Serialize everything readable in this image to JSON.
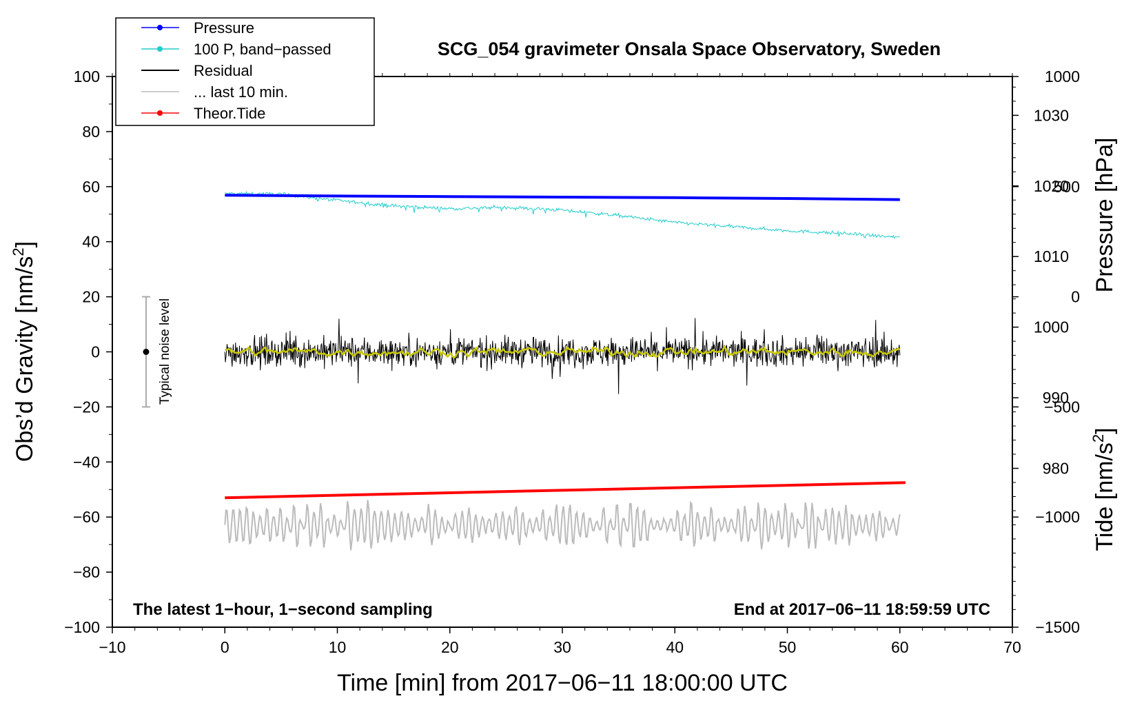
{
  "chart_data": {
    "type": "line",
    "title": "SCG_054 gravimeter Onsala Space Observatory, Sweden",
    "xlabel": "Time [min] from 2017−06−11 18:00:00 UTC",
    "xlim": [
      -10,
      70
    ],
    "x_ticks": [
      "−10",
      "0",
      "10",
      "20",
      "30",
      "40",
      "50",
      "60",
      "70"
    ],
    "left_axis": {
      "label": "Obs’d Gravity [nm/s",
      "label_sup": "2",
      "label_end": "]",
      "ylim": [
        -100,
        100
      ],
      "ticks": [
        "−100",
        "−80",
        "−60",
        "−40",
        "−20",
        "0",
        "20",
        "40",
        "60",
        "80",
        "100"
      ]
    },
    "right_pressure_axis": {
      "label": "Pressure [hPa]",
      "range_hpa": [
        957.5,
        1035.5
      ],
      "ticks": [
        "980",
        "990",
        "1000",
        "1010",
        "1020",
        "1030"
      ]
    },
    "right_tide_axis": {
      "label": "Tide [nm/s",
      "label_sup": "2",
      "label_end": "]",
      "range": [
        -1500,
        1000
      ],
      "ticks": [
        "−1500",
        "−1000",
        "−500",
        "0",
        "500",
        "1000"
      ]
    },
    "legend": {
      "position": "top-left",
      "entries": [
        {
          "label": "Pressure",
          "color": "#0000ff",
          "marker": true
        },
        {
          "label": "100 P, band−passed",
          "color": "#22cccc",
          "marker": true
        },
        {
          "label": "Residual",
          "color": "#000000",
          "marker": false
        },
        {
          "label": "... last 10 min.",
          "color": "#bbbbbb",
          "marker": false
        },
        {
          "label": "Theor.Tide",
          "color": "#ff0000",
          "marker": true
        }
      ]
    },
    "noise_bar": {
      "label": "Typical noise level",
      "x": -7,
      "center": 0,
      "low": -20,
      "high": 20
    },
    "footer_left": "The latest 1−hour, 1−second sampling",
    "footer_right": "End at 2017−06−11 18:59:59 UTC",
    "series": [
      {
        "name": "Pressure",
        "axis": "left_gravity_units",
        "color": "#0000ff",
        "x": [
          0,
          10,
          20,
          30,
          40,
          50,
          60
        ],
        "y": [
          56.9,
          56.6,
          56.4,
          56.2,
          56.0,
          55.7,
          55.3
        ]
      },
      {
        "name": "100 P, band−passed",
        "axis": "left",
        "color": "#22cccc",
        "x": [
          0,
          5,
          10,
          15,
          20,
          25,
          30,
          35,
          40,
          45,
          50,
          55,
          60
        ],
        "y": [
          57.5,
          57.3,
          55.0,
          53.0,
          52.0,
          52.5,
          51.5,
          49.5,
          47.0,
          45.5,
          44.0,
          43.0,
          41.5
        ]
      },
      {
        "name": "Residual",
        "axis": "left",
        "color": "#000000",
        "mean": 0,
        "spread": 7,
        "x_range": [
          0,
          60
        ]
      },
      {
        "name": "Residual (smoothed)",
        "axis": "left",
        "color": "#c8c800",
        "mean": 0,
        "spread": 1.5,
        "x_range": [
          0,
          60
        ]
      },
      {
        "name": "... last 10 min.",
        "axis": "left",
        "color": "#bbbbbb",
        "mean": -63,
        "spread": 5,
        "x_range": [
          0,
          60
        ]
      },
      {
        "name": "Theor.Tide",
        "axis": "left",
        "color": "#ff0000",
        "x": [
          0,
          60.5
        ],
        "y": [
          -53.0,
          -47.5
        ]
      }
    ]
  }
}
